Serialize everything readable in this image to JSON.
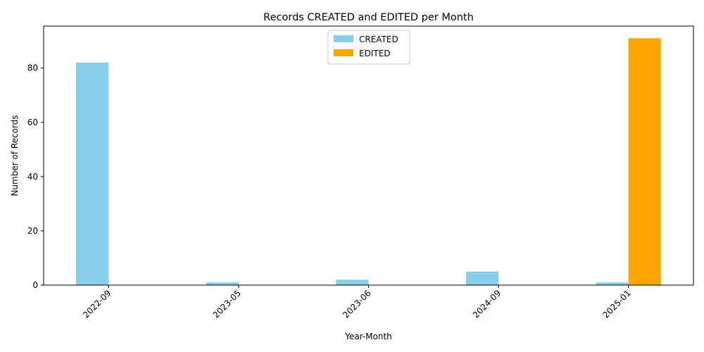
{
  "chart_data": {
    "type": "bar",
    "title": "Records CREATED and EDITED per Month",
    "xlabel": "Year-Month",
    "ylabel": "Number of Records",
    "categories": [
      "2022-09",
      "2023-05",
      "2023-06",
      "2024-09",
      "2025-01"
    ],
    "series": [
      {
        "name": "CREATED",
        "values": [
          82,
          1,
          2,
          5,
          1
        ],
        "color": "#87ceeb"
      },
      {
        "name": "EDITED",
        "values": [
          0,
          0,
          0,
          0,
          91
        ],
        "color": "#ffa500"
      }
    ],
    "yticks": [
      0,
      20,
      40,
      60,
      80
    ],
    "ylim": [
      0,
      95.5
    ],
    "grid": false,
    "legend": "top-center",
    "xtick_rotation": 45
  }
}
